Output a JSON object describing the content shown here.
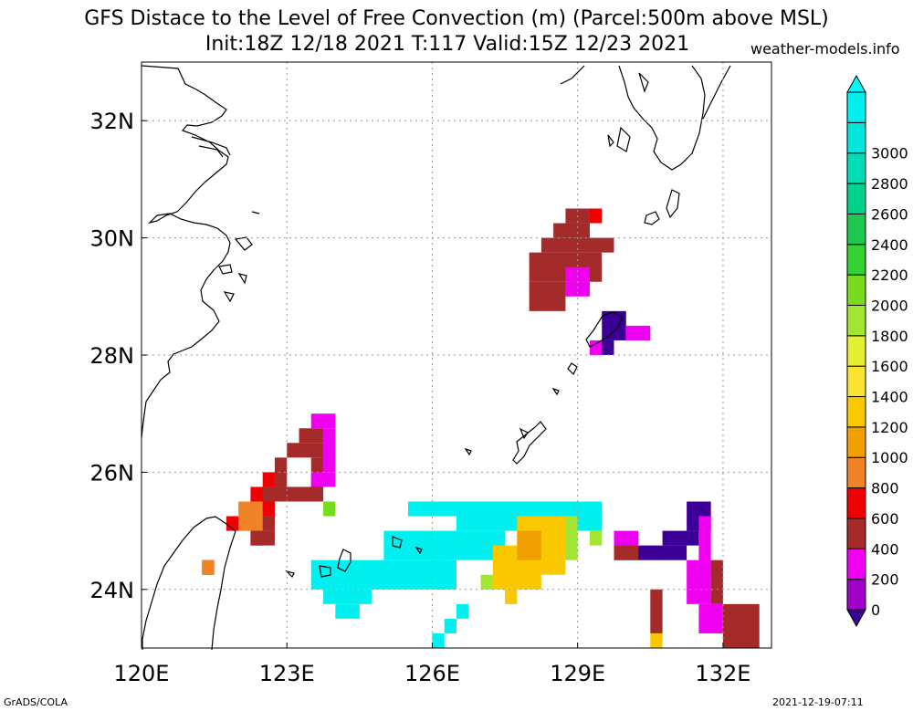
{
  "title": {
    "line1": "GFS Distace to the Level of Free Convection (m) (Parcel:500m above MSL)",
    "line2": "Init:18Z 12/18 2021 T:117 Valid:15Z 12/23 2021"
  },
  "credit": "weather-models.info",
  "footer": {
    "left": "GrADS/COLA",
    "right": "2021-12-19-07:11"
  },
  "map": {
    "lon_range": [
      120,
      133
    ],
    "lat_range": [
      23,
      33
    ],
    "x_ticks": [
      {
        "lon": 120,
        "label": "120E"
      },
      {
        "lon": 123,
        "label": "123E"
      },
      {
        "lon": 126,
        "label": "126E"
      },
      {
        "lon": 129,
        "label": "129E"
      },
      {
        "lon": 132,
        "label": "132E"
      }
    ],
    "y_ticks": [
      {
        "lat": 24,
        "label": "24N"
      },
      {
        "lat": 26,
        "label": "26N"
      },
      {
        "lat": 28,
        "label": "28N"
      },
      {
        "lat": 30,
        "label": "30N"
      },
      {
        "lat": 32,
        "label": "32N"
      }
    ],
    "grid": true
  },
  "colorbar": {
    "levels": [
      0,
      200,
      400,
      600,
      800,
      1000,
      1200,
      1400,
      1600,
      1800,
      2000,
      2200,
      2400,
      2600,
      2800,
      3000
    ],
    "labels": [
      "0",
      "200",
      "400",
      "600",
      "800",
      "1000",
      "1200",
      "1400",
      "1600",
      "1800",
      "2000",
      "2200",
      "2400",
      "2600",
      "2800",
      "3000"
    ],
    "colors": [
      "#a000c8",
      "#f000f0",
      "#a52a2a",
      "#f00000",
      "#f08228",
      "#f0a000",
      "#fac800",
      "#fae632",
      "#e6f032",
      "#a0e632",
      "#78dc1e",
      "#32d232",
      "#1ec850",
      "#00d28c",
      "#00dcb4",
      "#00e6dc",
      "#00f0f0"
    ],
    "under_color": "#3c0096",
    "over_color": "#00fafa"
  },
  "fields": {
    "cell_deg": 0.25,
    "regions": [
      {
        "name": "cyan-band-west",
        "color": "#00f0f0",
        "cells": [
          [
            123.5,
            24.5,
            126.25,
            24.0
          ],
          [
            123.75,
            24.0,
            124.75,
            23.75
          ],
          [
            124.0,
            23.75,
            124.5,
            23.5
          ],
          [
            125.5,
            25.5,
            126.5,
            25.25
          ]
        ]
      },
      {
        "name": "cyan-band-east",
        "color": "#00f0f0",
        "cells": [
          [
            126.5,
            25.5,
            129.5,
            25.0
          ],
          [
            125.0,
            25.0,
            127.5,
            24.5
          ],
          [
            126.0,
            24.5,
            126.5,
            24.0
          ]
        ]
      },
      {
        "name": "cyan-dots",
        "color": "#00f0f0",
        "cells": [
          [
            126.5,
            23.75,
            126.75,
            23.5
          ],
          [
            126.25,
            23.5,
            126.5,
            23.25
          ],
          [
            126.0,
            23.25,
            126.25,
            23.0
          ]
        ]
      },
      {
        "name": "yellow-core",
        "color": "#fac800",
        "cells": [
          [
            127.75,
            25.25,
            128.75,
            24.25
          ],
          [
            127.25,
            24.75,
            128.25,
            24.0
          ],
          [
            127.5,
            24.0,
            127.75,
            23.75
          ]
        ]
      },
      {
        "name": "green-fringe",
        "color": "#a0e632",
        "cells": [
          [
            128.75,
            25.25,
            129.0,
            24.5
          ],
          [
            127.0,
            24.25,
            127.25,
            24.0
          ],
          [
            129.25,
            25.0,
            129.5,
            24.75
          ]
        ]
      },
      {
        "name": "orange-center",
        "color": "#f0a000",
        "cells": [
          [
            127.75,
            25.0,
            128.25,
            24.5
          ]
        ]
      },
      {
        "name": "northern-brown",
        "color": "#a52a2a",
        "cells": [
          [
            128.75,
            30.5,
            129.25,
            30.25
          ],
          [
            128.5,
            30.25,
            129.25,
            30.0
          ],
          [
            128.25,
            30.0,
            129.75,
            29.75
          ],
          [
            128.0,
            29.75,
            129.5,
            29.25
          ],
          [
            128.0,
            29.25,
            128.75,
            28.75
          ]
        ]
      },
      {
        "name": "northern-magenta",
        "color": "#f000f0",
        "cells": [
          [
            128.75,
            29.5,
            129.25,
            29.25
          ],
          [
            128.75,
            29.25,
            129.25,
            29.0
          ]
        ]
      },
      {
        "name": "northern-red",
        "color": "#f00000",
        "cells": [
          [
            129.25,
            30.5,
            129.5,
            30.25
          ]
        ]
      },
      {
        "name": "amami-purple",
        "color": "#3c0096",
        "cells": [
          [
            129.5,
            28.75,
            130.0,
            28.25
          ],
          [
            129.25,
            28.25,
            129.75,
            28.0
          ]
        ]
      },
      {
        "name": "amami-magenta",
        "color": "#f000f0",
        "cells": [
          [
            130.0,
            28.5,
            130.5,
            28.25
          ],
          [
            129.25,
            28.25,
            129.5,
            28.0
          ]
        ]
      },
      {
        "name": "west-red",
        "color": "#f00000",
        "cells": [
          [
            122.5,
            26.0,
            122.75,
            25.75
          ],
          [
            122.25,
            25.75,
            122.75,
            25.25
          ],
          [
            121.75,
            25.25,
            122.5,
            25.0
          ],
          [
            122.25,
            25.0,
            122.5,
            24.75
          ],
          [
            121.25,
            24.5,
            121.5,
            24.25
          ]
        ]
      },
      {
        "name": "west-orange",
        "color": "#f08228",
        "cells": [
          [
            122.0,
            25.5,
            122.5,
            25.0
          ],
          [
            121.25,
            24.5,
            121.5,
            24.25
          ]
        ]
      },
      {
        "name": "west-brown",
        "color": "#a52a2a",
        "cells": [
          [
            123.25,
            26.75,
            123.75,
            26.5
          ],
          [
            123.0,
            26.5,
            123.75,
            26.25
          ],
          [
            122.75,
            26.25,
            123.0,
            25.75
          ],
          [
            123.5,
            26.25,
            123.75,
            25.75
          ],
          [
            122.5,
            25.75,
            123.75,
            25.5
          ],
          [
            122.5,
            25.25,
            122.75,
            25.0
          ],
          [
            122.25,
            25.0,
            122.75,
            24.75
          ]
        ]
      },
      {
        "name": "west-magenta",
        "color": "#f000f0",
        "cells": [
          [
            123.75,
            26.75,
            124.0,
            26.0
          ],
          [
            123.5,
            26.0,
            124.0,
            25.75
          ],
          [
            123.5,
            27.0,
            124.0,
            26.75
          ]
        ]
      },
      {
        "name": "west-green",
        "color": "#78dc1e",
        "cells": [
          [
            123.75,
            25.5,
            124.0,
            25.25
          ]
        ]
      },
      {
        "name": "se-purple",
        "color": "#3c0096",
        "cells": [
          [
            131.25,
            25.5,
            131.75,
            25.0
          ],
          [
            130.75,
            25.0,
            131.5,
            24.75
          ],
          [
            130.25,
            24.75,
            131.25,
            24.5
          ]
        ]
      },
      {
        "name": "se-magenta",
        "color": "#f000f0",
        "cells": [
          [
            131.5,
            25.25,
            131.75,
            24.25
          ],
          [
            129.75,
            25.0,
            130.25,
            24.5
          ],
          [
            131.25,
            24.5,
            131.75,
            23.75
          ],
          [
            131.5,
            23.75,
            132.0,
            23.25
          ]
        ]
      },
      {
        "name": "se-brown",
        "color": "#a52a2a",
        "cells": [
          [
            131.75,
            24.5,
            132.0,
            23.75
          ],
          [
            132.0,
            23.75,
            132.75,
            23.0
          ],
          [
            130.5,
            24.0,
            130.75,
            23.25
          ],
          [
            129.75,
            24.75,
            130.25,
            24.5
          ]
        ]
      },
      {
        "name": "se-yellow",
        "color": "#fac800",
        "cells": [
          [
            130.5,
            23.25,
            130.75,
            23.0
          ]
        ]
      }
    ]
  }
}
